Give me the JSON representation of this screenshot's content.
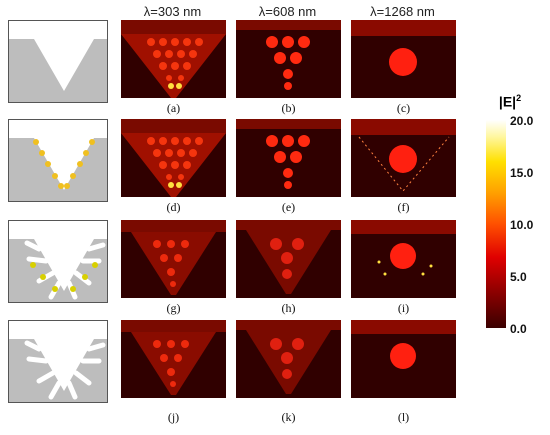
{
  "columns": [
    {
      "label": "λ=303 nm"
    },
    {
      "label": "λ=608 nm"
    },
    {
      "label": "λ=1268 nm"
    }
  ],
  "rows": [
    {
      "schematic": "v-groove",
      "panels": [
        "(a)",
        "(b)",
        "(c)"
      ]
    },
    {
      "schematic": "v-groove-particles",
      "panels": [
        "(d)",
        "(e)",
        "(f)"
      ]
    },
    {
      "schematic": "v-groove-slots-particles",
      "panels": [
        "(g)",
        "(h)",
        "(i)"
      ]
    },
    {
      "schematic": "v-groove-slots",
      "panels": [
        "(j)",
        "(k)",
        "(l)"
      ]
    }
  ],
  "colorbar": {
    "title": "|E|",
    "title_sup": "2",
    "ticks": [
      "20.0",
      "15.0",
      "10.0",
      "5.0",
      "0.0"
    ],
    "colors": {
      "max": "#ffffff",
      "mid": "#ff5000",
      "min": "#3a0000"
    }
  },
  "colors": {
    "substrate": "#bdbdbd",
    "particle": "#f0c020",
    "field_background": "#300000"
  }
}
